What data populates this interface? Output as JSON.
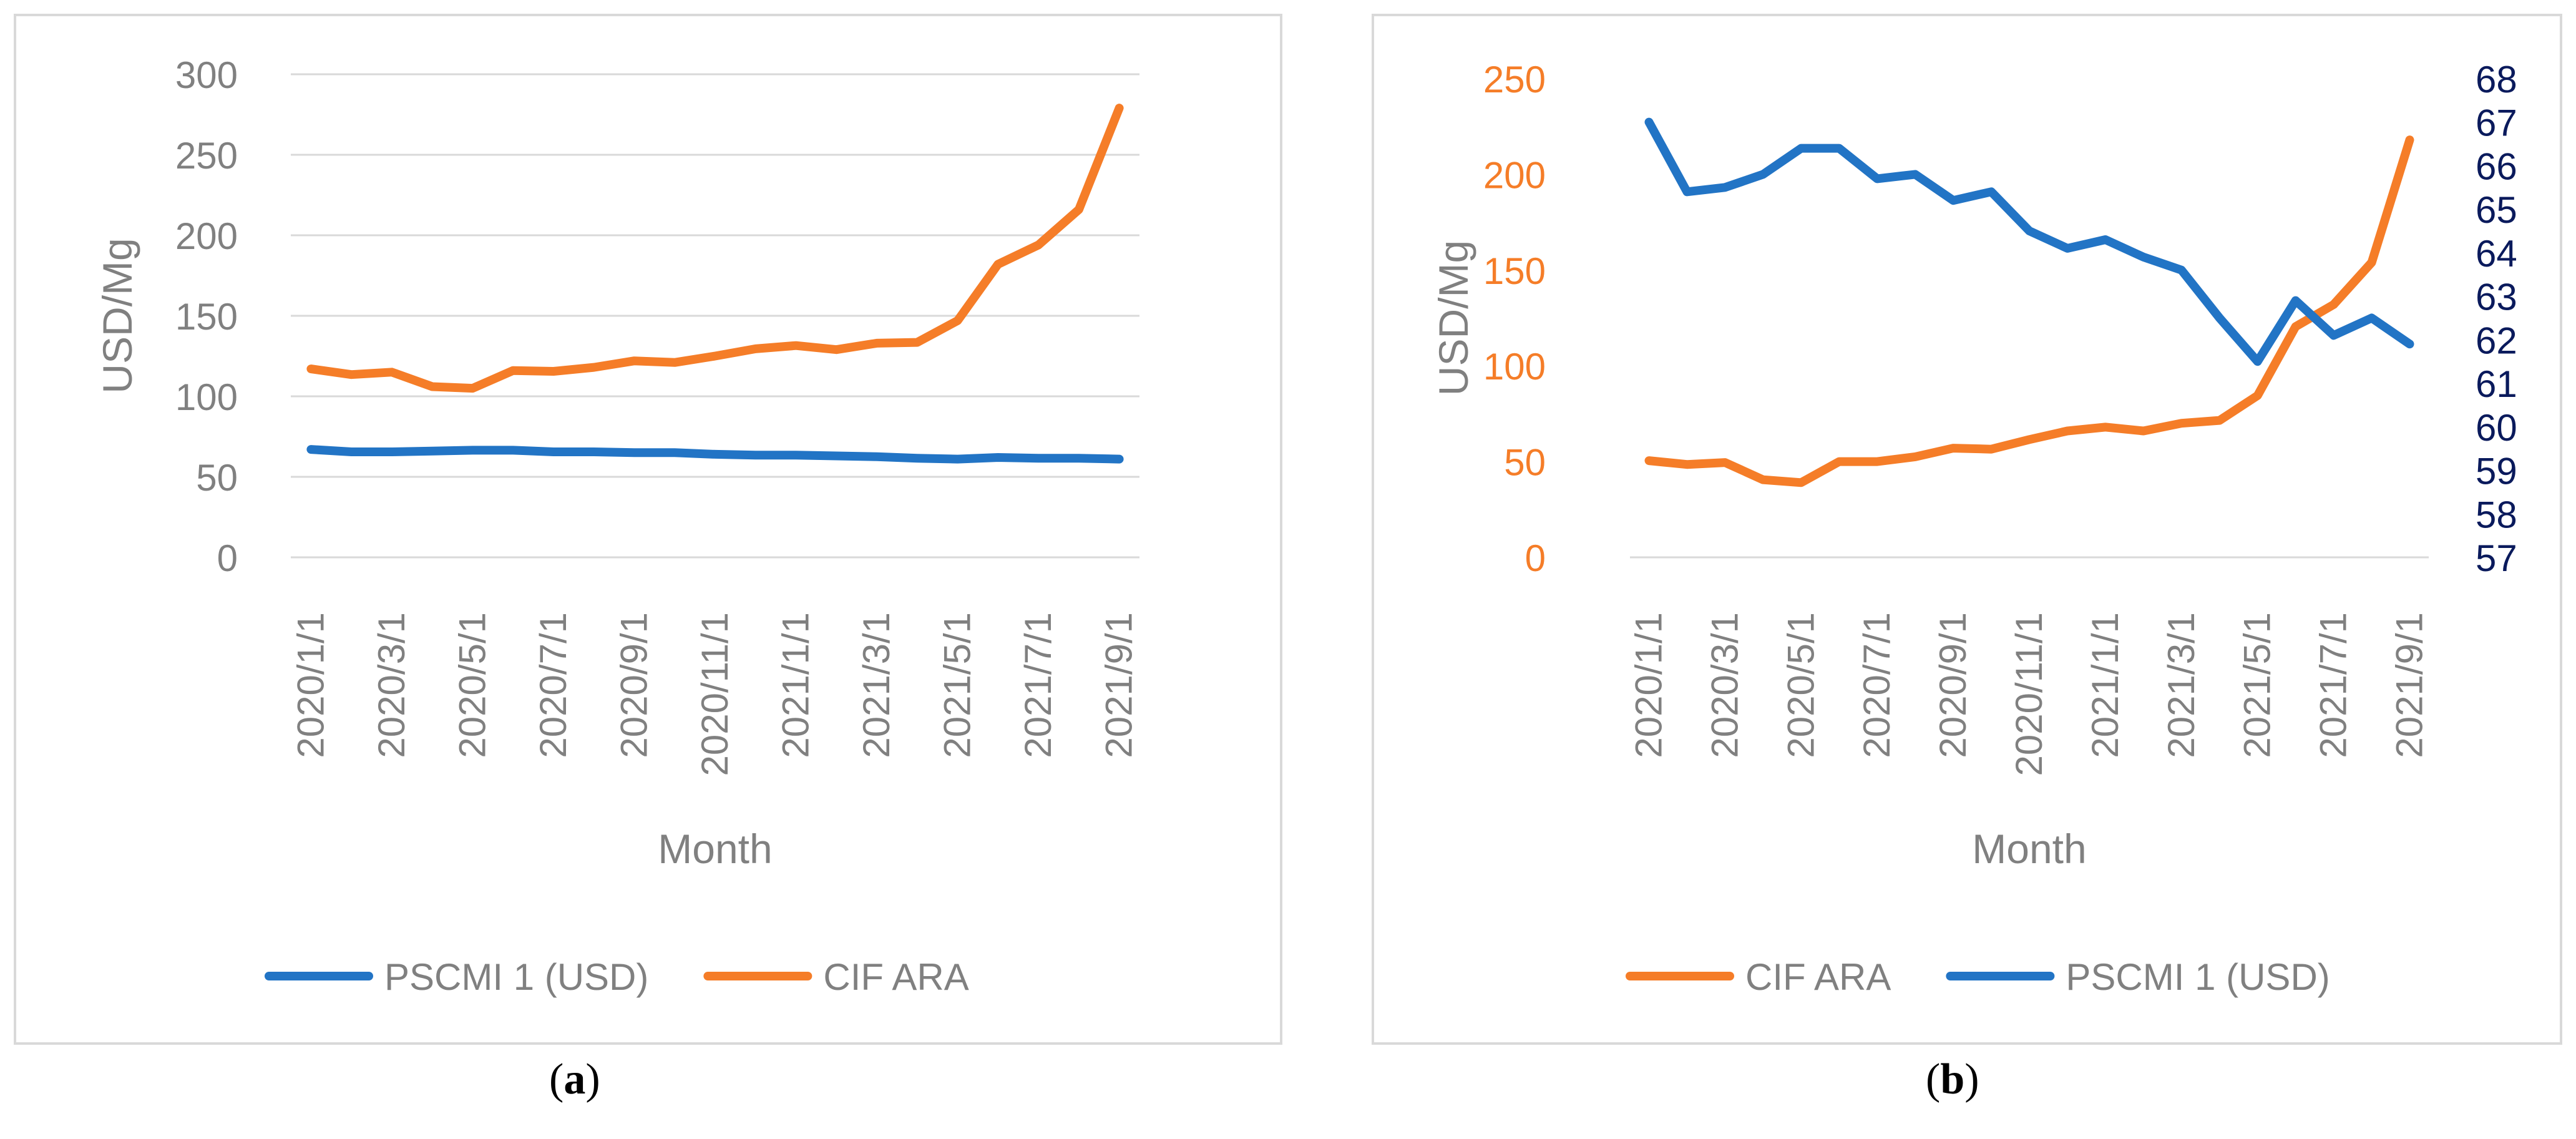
{
  "colors": {
    "orange": "#F57D28",
    "blue": "#2274C5",
    "navy": "#0A1A5C",
    "gray": "#808080",
    "grid": "#d9d9d9"
  },
  "months": [
    "2020/1/1",
    "2020/2/1",
    "2020/3/1",
    "2020/4/1",
    "2020/5/1",
    "2020/6/1",
    "2020/7/1",
    "2020/8/1",
    "2020/9/1",
    "2020/10/1",
    "2020/11/1",
    "2020/12/1",
    "2021/1/1",
    "2021/2/1",
    "2021/3/1",
    "2021/4/1",
    "2021/5/1",
    "2021/6/1",
    "2021/7/1",
    "2021/8/1",
    "2021/9/1"
  ],
  "captions": {
    "a": "a",
    "b": "b"
  },
  "chart_data": [
    {
      "id": "a",
      "type": "line",
      "title": "",
      "xlabel": "Month",
      "ylabel": "USD/Mg",
      "ylim": [
        0,
        300
      ],
      "yticks": [
        "0",
        "50",
        "100",
        "150",
        "200",
        "250",
        "300"
      ],
      "xtick_labels": [
        "2020/1/1",
        "2020/3/1",
        "2020/5/1",
        "2020/7/1",
        "2020/9/1",
        "2020/11/1",
        "2021/1/1",
        "2021/3/1",
        "2021/5/1",
        "2021/7/1",
        "2021/9/1"
      ],
      "legend_position": "bottom",
      "grid": true,
      "series": [
        {
          "name": "PSCMI 1 (USD)",
          "color": "#2274C5",
          "values": [
            67,
            65.5,
            65.5,
            66,
            66.5,
            66.5,
            65.5,
            65.5,
            65,
            65,
            64,
            63.5,
            63.5,
            63,
            62.5,
            61.5,
            61,
            62,
            61.5,
            61.5,
            61
          ]
        },
        {
          "name": "CIF ARA",
          "color": "#F57D28",
          "values": [
            117,
            113.5,
            115,
            106,
            105,
            116,
            115.5,
            118,
            122,
            121,
            125,
            129.5,
            131.5,
            129,
            133,
            133.5,
            147,
            182,
            194,
            216,
            279
          ]
        }
      ]
    },
    {
      "id": "b",
      "type": "line",
      "title": "",
      "xlabel": "Month",
      "ylabel": "USD/Mg",
      "ylim": [
        0,
        250
      ],
      "yticks": [
        "0",
        "50",
        "100",
        "150",
        "200",
        "250"
      ],
      "y2lim": [
        57,
        68
      ],
      "y2ticks": [
        "57",
        "58",
        "59",
        "60",
        "61",
        "62",
        "63",
        "64",
        "65",
        "66",
        "67",
        "68"
      ],
      "xtick_labels": [
        "2020/1/1",
        "2020/3/1",
        "2020/5/1",
        "2020/7/1",
        "2020/9/1",
        "2020/11/1",
        "2021/1/1",
        "2021/3/1",
        "2021/5/1",
        "2021/7/1",
        "2021/9/1"
      ],
      "legend_position": "bottom",
      "grid": false,
      "series": [
        {
          "name": "CIF ARA",
          "color": "#F57D28",
          "axis": "left",
          "values": [
            50.5,
            48.5,
            49.5,
            40.5,
            39,
            50,
            50,
            52.5,
            57,
            56.5,
            61.5,
            66,
            68,
            66,
            70,
            71.5,
            84.5,
            120.5,
            132,
            154,
            218
          ]
        },
        {
          "name": "PSCMI 1 (USD)",
          "color": "#2274C5",
          "axis": "right",
          "values": [
            67,
            65.4,
            65.5,
            65.8,
            66.4,
            66.4,
            65.7,
            65.8,
            65.2,
            65.4,
            64.5,
            64.1,
            64.3,
            63.9,
            63.6,
            62.5,
            61.5,
            62.9,
            62.1,
            62.5,
            61.9
          ]
        }
      ]
    }
  ]
}
